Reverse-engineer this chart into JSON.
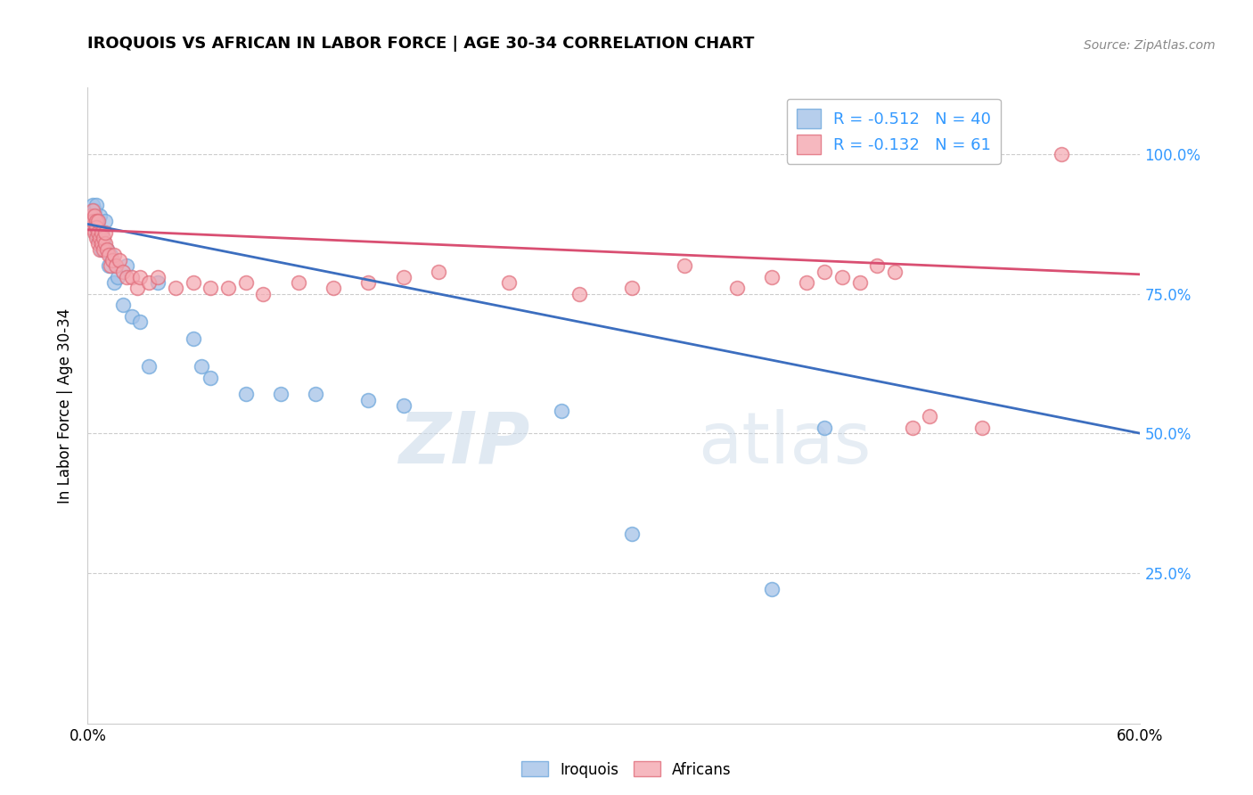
{
  "title": "IROQUOIS VS AFRICAN IN LABOR FORCE | AGE 30-34 CORRELATION CHART",
  "source": "Source: ZipAtlas.com",
  "ylabel": "In Labor Force | Age 30-34",
  "xlim": [
    0.0,
    0.6
  ],
  "ylim": [
    -0.02,
    1.12
  ],
  "ytick_positions": [
    0.25,
    0.5,
    0.75,
    1.0
  ],
  "yticklabels": [
    "25.0%",
    "50.0%",
    "75.0%",
    "100.0%"
  ],
  "iroquois_color": "#a4c2e8",
  "africans_color": "#f4a7b0",
  "iroquois_edge_color": "#6fa8dc",
  "africans_edge_color": "#e06c7a",
  "iroquois_line_color": "#3c6ebf",
  "africans_line_color": "#d94f72",
  "legend_R_iroquois": "-0.512",
  "legend_N_iroquois": "40",
  "legend_R_africans": "-0.132",
  "legend_N_africans": "61",
  "watermark_zip": "ZIP",
  "watermark_atlas": "atlas",
  "iroquois_x": [
    0.002,
    0.003,
    0.003,
    0.004,
    0.004,
    0.005,
    0.005,
    0.005,
    0.006,
    0.006,
    0.006,
    0.007,
    0.007,
    0.008,
    0.008,
    0.009,
    0.01,
    0.011,
    0.012,
    0.013,
    0.015,
    0.017,
    0.02,
    0.022,
    0.025,
    0.03,
    0.035,
    0.04,
    0.06,
    0.065,
    0.07,
    0.09,
    0.11,
    0.13,
    0.16,
    0.18,
    0.27,
    0.31,
    0.39,
    0.42
  ],
  "iroquois_y": [
    0.89,
    0.88,
    0.91,
    0.87,
    0.9,
    0.88,
    0.86,
    0.91,
    0.85,
    0.88,
    0.87,
    0.86,
    0.89,
    0.83,
    0.86,
    0.84,
    0.88,
    0.83,
    0.8,
    0.82,
    0.77,
    0.78,
    0.73,
    0.8,
    0.71,
    0.7,
    0.62,
    0.77,
    0.67,
    0.62,
    0.6,
    0.57,
    0.57,
    0.57,
    0.56,
    0.55,
    0.54,
    0.32,
    0.22,
    0.51
  ],
  "africans_x": [
    0.002,
    0.002,
    0.003,
    0.003,
    0.004,
    0.004,
    0.005,
    0.005,
    0.005,
    0.006,
    0.006,
    0.006,
    0.007,
    0.007,
    0.008,
    0.008,
    0.009,
    0.009,
    0.01,
    0.01,
    0.011,
    0.012,
    0.013,
    0.014,
    0.015,
    0.016,
    0.018,
    0.02,
    0.022,
    0.025,
    0.028,
    0.03,
    0.035,
    0.04,
    0.05,
    0.06,
    0.07,
    0.08,
    0.09,
    0.1,
    0.12,
    0.14,
    0.16,
    0.18,
    0.2,
    0.24,
    0.28,
    0.31,
    0.34,
    0.37,
    0.39,
    0.41,
    0.42,
    0.43,
    0.44,
    0.45,
    0.46,
    0.47,
    0.48,
    0.51,
    0.555
  ],
  "africans_y": [
    0.89,
    0.87,
    0.9,
    0.88,
    0.89,
    0.86,
    0.88,
    0.85,
    0.87,
    0.84,
    0.86,
    0.88,
    0.85,
    0.83,
    0.86,
    0.84,
    0.83,
    0.85,
    0.84,
    0.86,
    0.83,
    0.82,
    0.8,
    0.81,
    0.82,
    0.8,
    0.81,
    0.79,
    0.78,
    0.78,
    0.76,
    0.78,
    0.77,
    0.78,
    0.76,
    0.77,
    0.76,
    0.76,
    0.77,
    0.75,
    0.77,
    0.76,
    0.77,
    0.78,
    0.79,
    0.77,
    0.75,
    0.76,
    0.8,
    0.76,
    0.78,
    0.77,
    0.79,
    0.78,
    0.77,
    0.8,
    0.79,
    0.51,
    0.53,
    0.51,
    1.0
  ],
  "iroquois_line_x0": 0.0,
  "iroquois_line_y0": 0.875,
  "iroquois_line_x1": 0.6,
  "iroquois_line_y1": 0.5,
  "africans_line_x0": 0.0,
  "africans_line_y0": 0.865,
  "africans_line_x1": 0.6,
  "africans_line_y1": 0.785
}
